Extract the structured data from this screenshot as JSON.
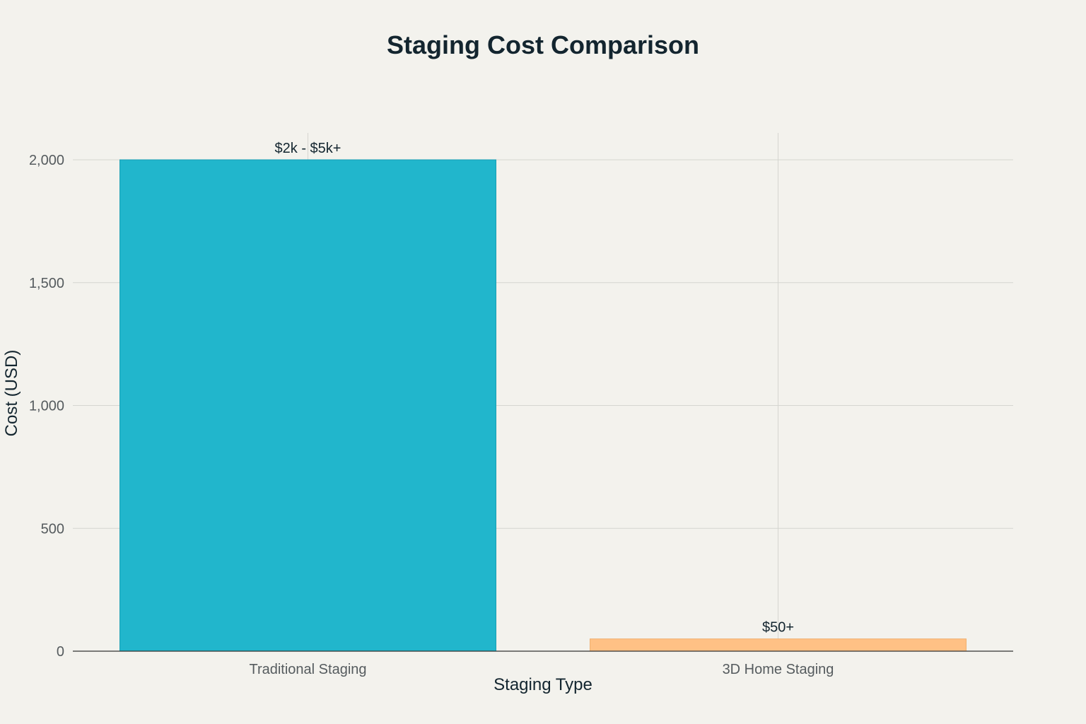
{
  "chart_data": {
    "type": "bar",
    "title": "Staging Cost Comparison",
    "xlabel": "Staging Type",
    "ylabel": "Cost (USD)",
    "categories": [
      "Traditional Staging",
      "3D Home Staging"
    ],
    "values": [
      2000,
      50
    ],
    "data_labels": [
      "$2k - $5k+",
      "$50+"
    ],
    "colors": [
      "#21b6cc",
      "#ffc185"
    ],
    "ylim": [
      0,
      2100
    ],
    "yticks": [
      0,
      500,
      1000,
      1500,
      2000
    ],
    "ytick_labels": [
      "0",
      "500",
      "1,000",
      "1,500",
      "2,000"
    ],
    "grid": true,
    "legend": "none"
  }
}
